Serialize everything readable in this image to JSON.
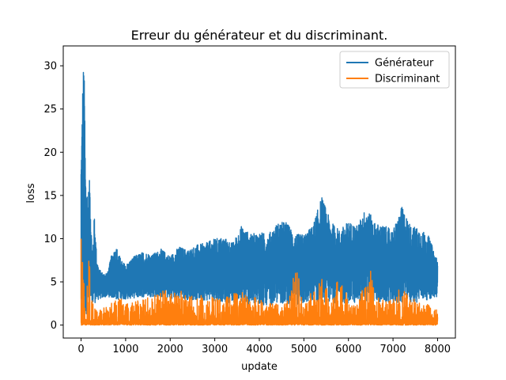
{
  "chart_data": {
    "type": "line",
    "title": "Erreur du générateur et du discriminant.",
    "xlabel": "update",
    "ylabel": "loss",
    "xlim": [
      -400,
      8400
    ],
    "ylim": [
      -1.5,
      32.3
    ],
    "xticks": [
      0,
      1000,
      2000,
      3000,
      4000,
      5000,
      6000,
      7000,
      8000
    ],
    "yticks": [
      0,
      5,
      10,
      15,
      20,
      25,
      30
    ],
    "grid": false,
    "legend_position": "top-right",
    "series": [
      {
        "name": "Générateur",
        "color": "#1f77b4",
        "upper_envelope": [
          [
            0,
            20
          ],
          [
            20,
            24
          ],
          [
            40,
            29
          ],
          [
            60,
            30.8
          ],
          [
            80,
            27
          ],
          [
            100,
            18
          ],
          [
            150,
            15
          ],
          [
            200,
            17.3
          ],
          [
            250,
            8
          ],
          [
            300,
            13
          ],
          [
            350,
            8
          ],
          [
            400,
            6.5
          ],
          [
            500,
            6
          ],
          [
            600,
            6.2
          ],
          [
            700,
            8.5
          ],
          [
            800,
            9
          ],
          [
            900,
            7.5
          ],
          [
            1000,
            7
          ],
          [
            1200,
            8
          ],
          [
            1400,
            8.5
          ],
          [
            1600,
            8.2
          ],
          [
            1800,
            8.8
          ],
          [
            2000,
            8
          ],
          [
            2200,
            9.1
          ],
          [
            2400,
            8.7
          ],
          [
            2600,
            9.3
          ],
          [
            2800,
            9.5
          ],
          [
            3000,
            10
          ],
          [
            3200,
            10.2
          ],
          [
            3400,
            9.5
          ],
          [
            3600,
            11.5
          ],
          [
            3800,
            10.5
          ],
          [
            4000,
            10.8
          ],
          [
            4200,
            10.5
          ],
          [
            4400,
            11.8
          ],
          [
            4600,
            12
          ],
          [
            4800,
            10.5
          ],
          [
            5000,
            10.5
          ],
          [
            5200,
            11.5
          ],
          [
            5400,
            14.9
          ],
          [
            5600,
            12
          ],
          [
            5800,
            11
          ],
          [
            6000,
            12
          ],
          [
            6200,
            11.5
          ],
          [
            6400,
            13.7
          ],
          [
            6600,
            11.8
          ],
          [
            6800,
            11.5
          ],
          [
            7000,
            11
          ],
          [
            7200,
            13.7
          ],
          [
            7400,
            11.5
          ],
          [
            7600,
            11.2
          ],
          [
            7800,
            10.3
          ],
          [
            8000,
            7.5
          ]
        ],
        "lower_envelope": [
          [
            0,
            0.5
          ],
          [
            100,
            1
          ],
          [
            200,
            2
          ],
          [
            300,
            2.5
          ],
          [
            400,
            3
          ],
          [
            600,
            3.3
          ],
          [
            800,
            2.9
          ],
          [
            1000,
            3
          ],
          [
            1500,
            3.3
          ],
          [
            2000,
            3.1
          ],
          [
            2500,
            2.9
          ],
          [
            3000,
            2.8
          ],
          [
            3500,
            2.5
          ],
          [
            4000,
            2.2
          ],
          [
            4500,
            2.5
          ],
          [
            5000,
            2.4
          ],
          [
            5500,
            2.6
          ],
          [
            6000,
            2.5
          ],
          [
            6500,
            2.7
          ],
          [
            7000,
            2.4
          ],
          [
            7500,
            2.6
          ],
          [
            8000,
            3.2
          ]
        ]
      },
      {
        "name": "Discriminant",
        "color": "#ff7f0e",
        "upper_envelope": [
          [
            0,
            10.7
          ],
          [
            50,
            6
          ],
          [
            100,
            4
          ],
          [
            200,
            8.6
          ],
          [
            250,
            2.5
          ],
          [
            400,
            1.9
          ],
          [
            600,
            2.2
          ],
          [
            800,
            3.5
          ],
          [
            1000,
            2.8
          ],
          [
            1200,
            2.8
          ],
          [
            1400,
            3
          ],
          [
            1600,
            3.5
          ],
          [
            1800,
            4.2
          ],
          [
            2000,
            3.8
          ],
          [
            2200,
            4.2
          ],
          [
            2400,
            3.2
          ],
          [
            2600,
            3.7
          ],
          [
            2800,
            3.5
          ],
          [
            3000,
            3.2
          ],
          [
            3200,
            3.2
          ],
          [
            3400,
            3.6
          ],
          [
            3600,
            3.9
          ],
          [
            3800,
            3
          ],
          [
            4000,
            3.4
          ],
          [
            4200,
            2.5
          ],
          [
            4400,
            2.5
          ],
          [
            4600,
            2.5
          ],
          [
            4800,
            7.2
          ],
          [
            5000,
            3.5
          ],
          [
            5200,
            3.7
          ],
          [
            5400,
            5.5
          ],
          [
            5600,
            3.5
          ],
          [
            5800,
            6.1
          ],
          [
            6000,
            3.5
          ],
          [
            6200,
            3
          ],
          [
            6400,
            5.2
          ],
          [
            6500,
            7.1
          ],
          [
            6600,
            3.5
          ],
          [
            6800,
            2.8
          ],
          [
            7000,
            3
          ],
          [
            7200,
            5.1
          ],
          [
            7400,
            3.5
          ],
          [
            7600,
            2.5
          ],
          [
            7800,
            2.5
          ],
          [
            8000,
            3.1
          ]
        ],
        "lower_envelope": [
          [
            0,
            0
          ],
          [
            8000,
            0
          ]
        ]
      }
    ]
  }
}
